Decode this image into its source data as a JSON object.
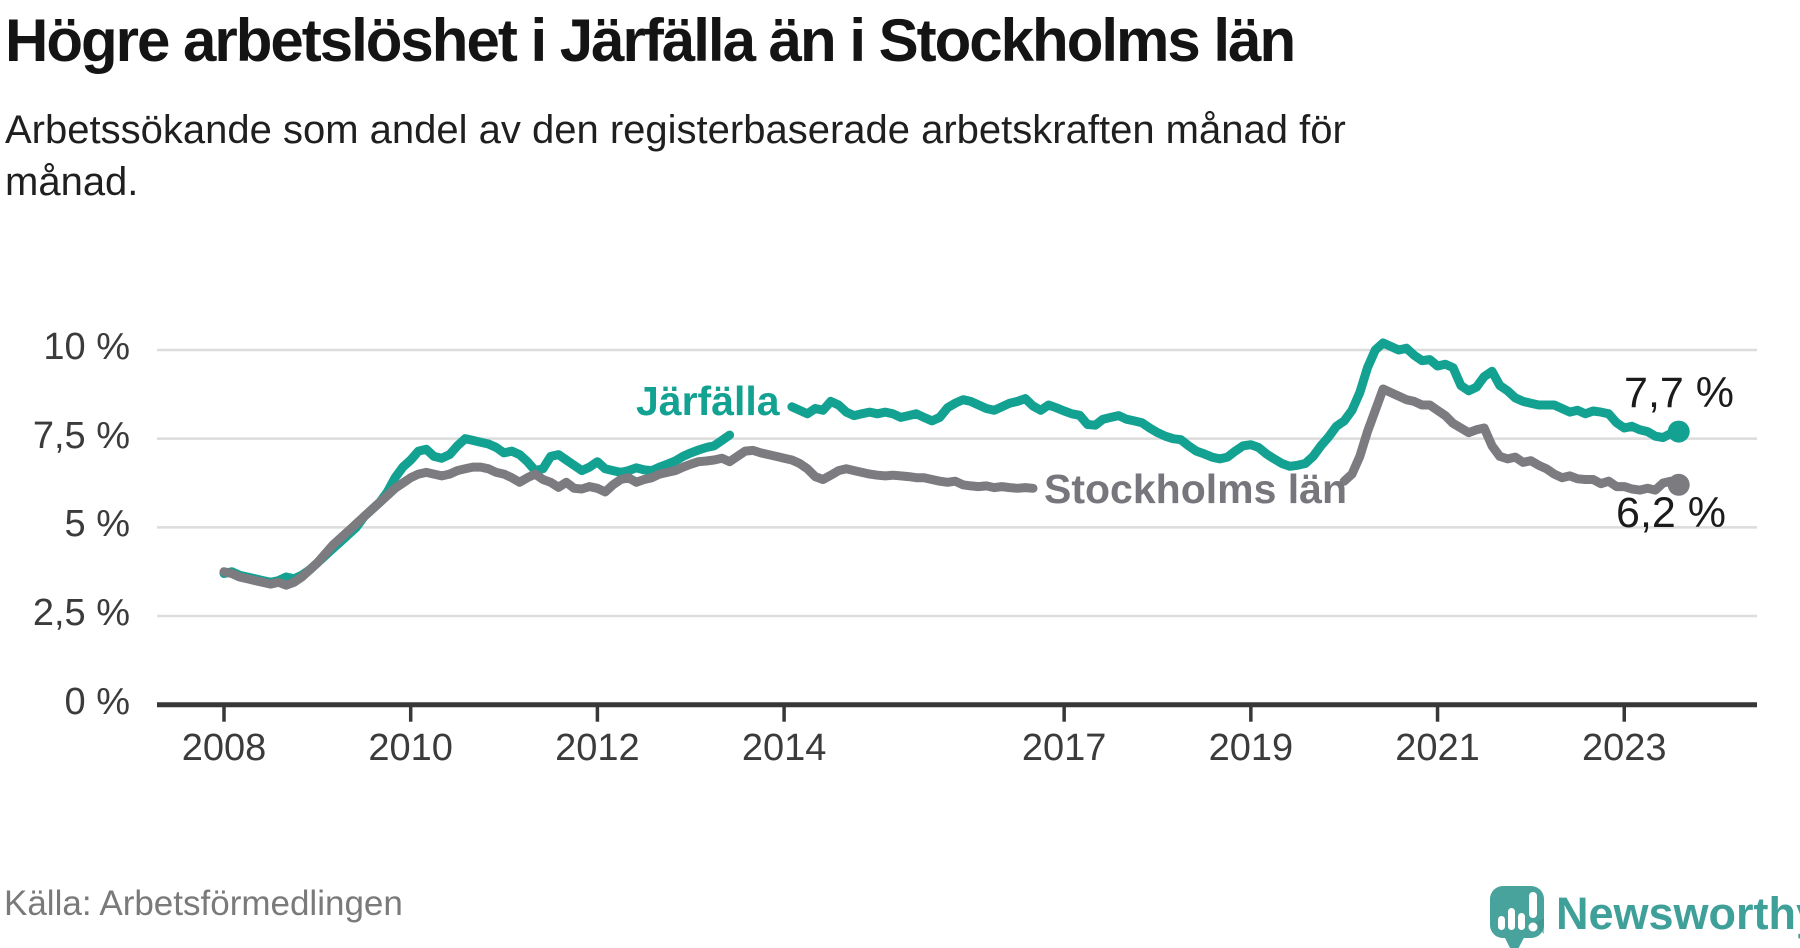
{
  "header": {
    "title": "Högre arbetslöshet i Järfälla än i Stockholms län",
    "subtitle": "Arbetssökande som andel av den registerbaserade arbetskraften månad för månad."
  },
  "footer": {
    "source": "Källa: Arbetsförmedlingen",
    "brand": "Newsworthy"
  },
  "colors": {
    "jarfalla_line": "#13a192",
    "stockholm_line": "#7b7b80",
    "grid": "#dcdcdc",
    "axis": "#373737",
    "tick_label": "#3b3b3b",
    "end_label": "#1b1b1b",
    "logo_bubble": "#47a39c",
    "logo_bubble_shadow": "#3a948d",
    "logo_text": "#3f9f99"
  },
  "chart_data": {
    "type": "line",
    "title": "Högre arbetslöshet i Järfälla än i Stockholms län",
    "subtitle": "Arbetssökande som andel av den registerbaserade arbetskraften månad för månad.",
    "source": "Källa: Arbetsförmedlingen",
    "x_unit": "month",
    "start": "2008-01",
    "end": "2023-08",
    "ylim": [
      0,
      10.5
    ],
    "grid": "horizontal",
    "legend_position": "inline-labels",
    "y_ticks": [
      {
        "value": 10,
        "label": "10 %"
      },
      {
        "value": 7.5,
        "label": "7,5 %"
      },
      {
        "value": 5,
        "label": "5 %"
      },
      {
        "value": 2.5,
        "label": "2,5 %"
      },
      {
        "value": 0,
        "label": "0 %"
      }
    ],
    "x_ticks": [
      {
        "value": 2008,
        "label": "2008"
      },
      {
        "value": 2010,
        "label": "2010"
      },
      {
        "value": 2012,
        "label": "2012"
      },
      {
        "value": 2014,
        "label": "2014"
      },
      {
        "value": 2017,
        "label": "2017"
      },
      {
        "value": 2019,
        "label": "2019"
      },
      {
        "value": 2021,
        "label": "2021"
      },
      {
        "value": 2023,
        "label": "2023"
      }
    ],
    "series": [
      {
        "name": "Järfälla",
        "color": "#13a192",
        "end_label": "7,7 %",
        "end_value": 7.7,
        "values": [
          3.7,
          3.75,
          3.65,
          3.6,
          3.55,
          3.5,
          3.45,
          3.5,
          3.6,
          3.55,
          3.65,
          3.8,
          4.0,
          4.2,
          4.4,
          4.6,
          4.8,
          5.0,
          5.3,
          5.5,
          5.7,
          6.0,
          6.4,
          6.7,
          6.9,
          7.15,
          7.2,
          7.0,
          6.95,
          7.05,
          7.3,
          7.5,
          7.45,
          7.4,
          7.35,
          7.25,
          7.1,
          7.15,
          7.05,
          6.85,
          6.6,
          6.65,
          7.0,
          7.05,
          6.9,
          6.75,
          6.6,
          6.7,
          6.85,
          6.65,
          6.6,
          6.55,
          6.6,
          6.68,
          6.62,
          6.6,
          6.7,
          6.78,
          6.87,
          7.0,
          7.1,
          7.18,
          7.25,
          7.3,
          7.45,
          7.6,
          7.8,
          8.0,
          8.15,
          8.3,
          8.4,
          8.5,
          8.6,
          8.4,
          8.3,
          8.2,
          8.35,
          8.3,
          8.55,
          8.45,
          8.25,
          8.15,
          8.2,
          8.25,
          8.2,
          8.25,
          8.2,
          8.1,
          8.15,
          8.2,
          8.1,
          8.0,
          8.1,
          8.37,
          8.5,
          8.6,
          8.55,
          8.45,
          8.35,
          8.3,
          8.4,
          8.5,
          8.55,
          8.63,
          8.42,
          8.3,
          8.45,
          8.37,
          8.28,
          8.2,
          8.16,
          7.9,
          7.88,
          8.05,
          8.1,
          8.15,
          8.05,
          8.0,
          7.95,
          7.8,
          7.67,
          7.57,
          7.5,
          7.47,
          7.3,
          7.15,
          7.07,
          6.98,
          6.93,
          6.98,
          7.15,
          7.3,
          7.33,
          7.25,
          7.07,
          6.93,
          6.8,
          6.72,
          6.75,
          6.8,
          7.0,
          7.3,
          7.55,
          7.85,
          8.0,
          8.3,
          8.8,
          9.5,
          10.0,
          10.2,
          10.1,
          10.0,
          10.05,
          9.85,
          9.7,
          9.73,
          9.55,
          9.6,
          9.5,
          9.0,
          8.85,
          8.95,
          9.25,
          9.4,
          9.0,
          8.85,
          8.65,
          8.55,
          8.5,
          8.45,
          8.45,
          8.45,
          8.35,
          8.25,
          8.3,
          8.2,
          8.28,
          8.25,
          8.2,
          7.95,
          7.8,
          7.85,
          7.75,
          7.7,
          7.57,
          7.53,
          7.65,
          7.7
        ]
      },
      {
        "name": "Stockholms län",
        "color": "#7b7b80",
        "end_label": "6,2 %",
        "end_value": 6.2,
        "values": [
          3.75,
          3.7,
          3.6,
          3.55,
          3.5,
          3.45,
          3.4,
          3.45,
          3.37,
          3.45,
          3.6,
          3.8,
          4.0,
          4.25,
          4.5,
          4.7,
          4.9,
          5.1,
          5.3,
          5.5,
          5.7,
          5.9,
          6.1,
          6.25,
          6.4,
          6.5,
          6.55,
          6.5,
          6.45,
          6.5,
          6.6,
          6.65,
          6.7,
          6.7,
          6.65,
          6.55,
          6.5,
          6.4,
          6.27,
          6.4,
          6.5,
          6.35,
          6.27,
          6.13,
          6.27,
          6.1,
          6.08,
          6.15,
          6.1,
          6.0,
          6.2,
          6.35,
          6.4,
          6.27,
          6.35,
          6.4,
          6.5,
          6.55,
          6.6,
          6.7,
          6.78,
          6.85,
          6.87,
          6.9,
          6.95,
          6.85,
          7.0,
          7.15,
          7.17,
          7.1,
          7.05,
          7.0,
          6.95,
          6.9,
          6.8,
          6.65,
          6.43,
          6.35,
          6.47,
          6.6,
          6.65,
          6.6,
          6.55,
          6.5,
          6.47,
          6.45,
          6.47,
          6.45,
          6.43,
          6.4,
          6.4,
          6.35,
          6.3,
          6.27,
          6.3,
          6.2,
          6.17,
          6.15,
          6.17,
          6.12,
          6.15,
          6.12,
          6.1,
          6.12,
          6.1,
          6.1,
          6.1,
          6.08,
          6.05,
          6.03,
          6.0,
          6.0,
          5.98,
          5.97,
          5.95,
          5.95,
          5.93,
          5.92,
          5.9,
          5.9,
          5.92,
          5.9,
          5.88,
          5.87,
          5.85,
          5.85,
          5.87,
          5.88,
          5.9,
          5.92,
          5.95,
          5.97,
          6.0,
          5.98,
          5.95,
          5.92,
          5.9,
          5.88,
          5.9,
          5.95,
          6.0,
          6.05,
          6.1,
          6.2,
          6.3,
          6.5,
          7.0,
          7.7,
          8.3,
          8.9,
          8.8,
          8.7,
          8.6,
          8.55,
          8.45,
          8.45,
          8.3,
          8.15,
          7.93,
          7.8,
          7.67,
          7.75,
          7.8,
          7.3,
          7.0,
          6.93,
          6.98,
          6.83,
          6.88,
          6.75,
          6.65,
          6.5,
          6.4,
          6.45,
          6.37,
          6.35,
          6.35,
          6.23,
          6.3,
          6.15,
          6.15,
          6.08,
          6.05,
          6.1,
          6.05,
          6.25,
          6.3,
          6.2
        ]
      }
    ]
  }
}
